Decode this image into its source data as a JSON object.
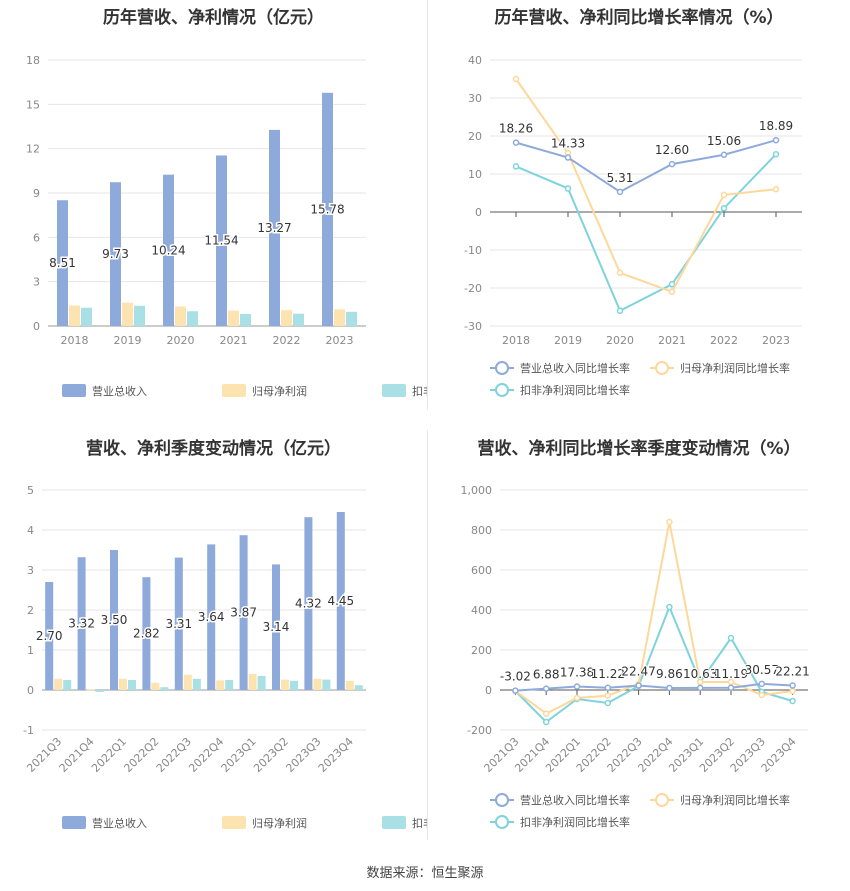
{
  "colors": {
    "revenue": "#8eaadb",
    "net_profit": "#fde3b0",
    "deducted_profit": "#a9e0e6",
    "revenue_line": "#8eaadb",
    "net_profit_line": "#fdd89a",
    "deducted_profit_line": "#7fd3dc",
    "grid": "#e6e6e6",
    "axis_text": "#888888"
  },
  "footer": {
    "source": "数据来源：恒生聚源"
  },
  "chart_data": [
    {
      "id": "annual-values",
      "type": "bar",
      "title": "历年营收、净利情况（亿元）",
      "categories": [
        "2018",
        "2019",
        "2020",
        "2021",
        "2022",
        "2023"
      ],
      "ylim": [
        0,
        18
      ],
      "yticks": [
        0,
        3,
        6,
        9,
        12,
        15,
        18
      ],
      "grid": true,
      "legend_position": "bottom",
      "series": [
        {
          "name": "营业总收入",
          "values": [
            8.51,
            9.73,
            10.24,
            11.54,
            13.27,
            15.78
          ],
          "labels": [
            "8.51",
            "9.73",
            "10.24",
            "11.54",
            "13.27",
            "15.78"
          ]
        },
        {
          "name": "归母净利润",
          "values": [
            1.38,
            1.58,
            1.32,
            1.04,
            1.07,
            1.13
          ]
        },
        {
          "name": "扣非净利润",
          "values": [
            1.24,
            1.37,
            1.0,
            0.82,
            0.83,
            0.96
          ]
        }
      ]
    },
    {
      "id": "annual-growth",
      "type": "line",
      "title": "历年营收、净利同比增长率情况（%）",
      "categories": [
        "2018",
        "2019",
        "2020",
        "2021",
        "2022",
        "2023"
      ],
      "ylim": [
        -30,
        40
      ],
      "yticks": [
        -30,
        -20,
        -10,
        0,
        10,
        20,
        30,
        40
      ],
      "grid": true,
      "legend_position": "bottom",
      "series": [
        {
          "name": "营业总收入同比增长率",
          "values": [
            18.26,
            14.33,
            5.31,
            12.6,
            15.06,
            18.89
          ],
          "labels": [
            "18.26",
            "14.33",
            "5.31",
            "12.60",
            "15.06",
            "18.89"
          ]
        },
        {
          "name": "归母净利润同比增长率",
          "values": [
            35.0,
            15.5,
            -16.0,
            -21.0,
            4.5,
            6.0
          ]
        },
        {
          "name": "扣非净利润同比增长率",
          "values": [
            12.0,
            6.2,
            -26.0,
            -19.0,
            1.0,
            15.2
          ]
        }
      ]
    },
    {
      "id": "quarterly-values",
      "type": "bar",
      "title": "营收、净利季度变动情况（亿元）",
      "categories": [
        "2021Q3",
        "2021Q4",
        "2022Q1",
        "2022Q2",
        "2022Q3",
        "2022Q4",
        "2023Q1",
        "2023Q2",
        "2023Q3",
        "2023Q4"
      ],
      "ylim": [
        -1,
        5
      ],
      "yticks": [
        -1,
        0,
        1,
        2,
        3,
        4,
        5
      ],
      "grid": true,
      "legend_position": "bottom",
      "series": [
        {
          "name": "营业总收入",
          "values": [
            2.7,
            3.32,
            3.5,
            2.82,
            3.31,
            3.64,
            3.87,
            3.14,
            4.32,
            4.45
          ],
          "labels": [
            "2.70",
            "3.32",
            "3.50",
            "2.82",
            "3.31",
            "3.64",
            "3.87",
            "3.14",
            "4.32",
            "4.45"
          ]
        },
        {
          "name": "归母净利润",
          "values": [
            0.28,
            0.02,
            0.28,
            0.18,
            0.38,
            0.24,
            0.4,
            0.26,
            0.28,
            0.23
          ]
        },
        {
          "name": "扣非净利润",
          "values": [
            0.25,
            -0.05,
            0.25,
            0.07,
            0.28,
            0.25,
            0.35,
            0.23,
            0.26,
            0.12
          ]
        }
      ]
    },
    {
      "id": "quarterly-growth",
      "type": "line",
      "title": "营收、净利同比增长率季度变动情况（%）",
      "categories": [
        "2021Q3",
        "2021Q4",
        "2022Q1",
        "2022Q2",
        "2022Q3",
        "2022Q4",
        "2023Q1",
        "2023Q2",
        "2023Q3",
        "2023Q4"
      ],
      "ylim": [
        -200,
        1000
      ],
      "yticks": [
        -200,
        0,
        200,
        400,
        600,
        800,
        1000
      ],
      "ytick_labels": [
        "-200",
        "0",
        "200",
        "400",
        "600",
        "800",
        "1,000"
      ],
      "grid": true,
      "legend_position": "bottom",
      "series": [
        {
          "name": "营业总收入同比增长率",
          "values": [
            -3.02,
            6.88,
            17.38,
            11.22,
            22.47,
            9.86,
            10.63,
            11.19,
            30.57,
            22.21
          ],
          "labels": [
            "-3.02",
            "6.88",
            "17.38",
            "11.22",
            "22.47",
            "9.86",
            "10.63",
            "11.19",
            "30.57",
            "22.21"
          ]
        },
        {
          "name": "归母净利润同比增长率",
          "values": [
            -5,
            -118,
            -40,
            -28,
            30,
            840,
            40,
            40,
            -25,
            -5
          ]
        },
        {
          "name": "扣非净利润同比增长率",
          "values": [
            -5,
            -160,
            -45,
            -65,
            20,
            415,
            40,
            260,
            -10,
            -55
          ]
        }
      ]
    }
  ]
}
